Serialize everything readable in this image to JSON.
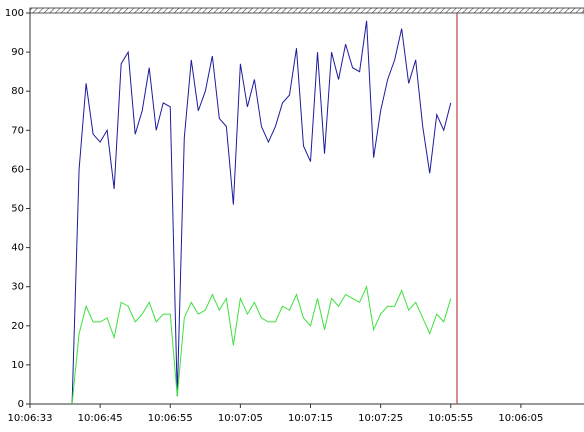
{
  "chart_data": {
    "type": "line",
    "x": [
      6,
      7,
      8,
      9,
      10,
      11,
      12,
      13,
      14,
      15,
      16,
      17,
      18,
      19,
      20,
      21,
      22,
      23,
      24,
      25,
      26,
      27,
      28,
      29,
      30,
      31,
      32,
      33,
      34,
      35,
      36,
      37,
      38,
      39,
      40,
      41,
      42,
      43,
      44,
      45,
      46,
      47,
      48,
      49,
      50,
      51,
      52,
      53,
      54,
      55,
      56,
      57,
      58,
      59,
      60
    ],
    "series": [
      {
        "color": "#1c1c9c",
        "values": [
          0,
          60,
          82,
          69,
          67,
          70,
          55,
          87,
          90,
          69,
          75,
          86,
          70,
          77,
          76,
          2,
          68,
          88,
          75,
          80,
          89,
          73,
          71,
          51,
          87,
          76,
          83,
          71,
          67,
          71,
          77,
          79,
          91,
          66,
          62,
          90,
          64,
          90,
          83,
          92,
          86,
          85,
          98,
          63,
          75,
          83,
          88,
          96,
          82,
          88,
          71,
          59,
          74,
          70,
          77
        ]
      },
      {
        "color": "#3ee03e",
        "values": [
          0,
          18,
          25,
          21,
          21,
          22,
          17,
          26,
          25,
          21,
          23,
          26,
          21,
          23,
          23,
          2,
          22,
          26,
          23,
          24,
          28,
          24,
          27,
          15,
          27,
          23,
          26,
          22,
          21,
          21,
          25,
          24,
          28,
          22,
          20,
          27,
          19,
          27,
          25,
          28,
          27,
          26,
          30,
          19,
          23,
          25,
          25,
          29,
          24,
          26,
          22,
          18,
          23,
          21,
          27
        ]
      }
    ],
    "xlim": [
      0,
      79
    ],
    "xticks": [
      {
        "value": 0,
        "label": "10:06:33"
      },
      {
        "value": 10,
        "label": "10:06:45"
      },
      {
        "value": 20,
        "label": "10:06:55"
      },
      {
        "value": 30,
        "label": "10:07:05"
      },
      {
        "value": 40,
        "label": "10:07:15"
      },
      {
        "value": 50,
        "label": "10:07:25"
      },
      {
        "value": 60,
        "label": "10:05:55"
      },
      {
        "value": 70,
        "label": "10:06:05"
      }
    ],
    "ylim": [
      0,
      100
    ],
    "yticks": [
      0,
      10,
      20,
      30,
      40,
      50,
      60,
      70,
      80,
      90,
      100
    ],
    "grid": false
  }
}
